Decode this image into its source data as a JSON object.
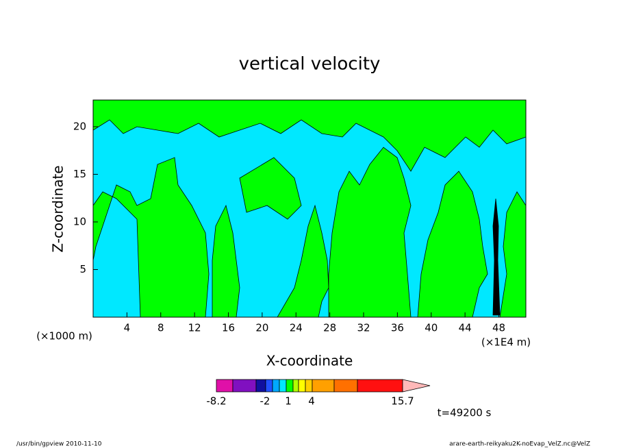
{
  "chart_data": {
    "type": "contour",
    "title": "vertical velocity",
    "x_label": "X-coordinate",
    "y_label": "Z-coordinate",
    "x_unit_left": "(×1000 m)",
    "x_unit_right": "(×1E4 m)",
    "xlim": [
      0,
      51.2
    ],
    "ylim": [
      0,
      22.8
    ],
    "xticks": [
      4,
      8,
      12,
      16,
      20,
      24,
      28,
      32,
      36,
      40,
      44,
      48
    ],
    "yticks": [
      5,
      10,
      15,
      20
    ],
    "colorbar": {
      "colors": [
        "#e010a8",
        "#8010c0",
        "#1010a0",
        "#2050ff",
        "#00a8ff",
        "#00e8ff",
        "#00ff00",
        "#b0ff00",
        "#ffff00",
        "#ffd000",
        "#ffa000",
        "#ff7000",
        "#ff1010",
        "#ff8080",
        "#ffb8b8"
      ],
      "ticks": [
        -8.2,
        -2,
        1,
        4,
        15.7
      ]
    },
    "time_label": "t=49200 s",
    "footer_left": "/usr/bin/gpview   2010-11-10",
    "footer_right": "arare-earth-reikyaku2K-noEvap_VelZ.nc@VelZ"
  }
}
